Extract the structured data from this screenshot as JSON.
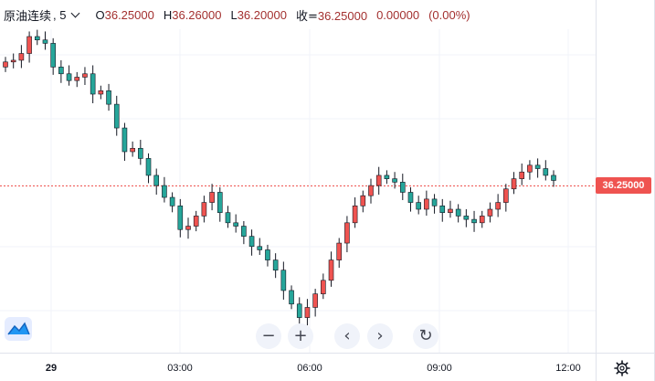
{
  "legend": {
    "symbol": "原油连续",
    "interval": ", 5",
    "open_label": "O",
    "open": "36.25000",
    "high_label": "H",
    "high": "36.26000",
    "low_label": "L",
    "low": "36.20000",
    "close_label": "收=",
    "close": "36.25000",
    "change": "0.00000",
    "change_pct": "(0.00%)"
  },
  "price_axis": {
    "last_price": "36.25000",
    "last_price_color": "#ef5350"
  },
  "time_axis": {
    "labels": [
      "29",
      "03:00",
      "06:00",
      "09:00",
      "12:00"
    ]
  },
  "controls": {
    "zoom_out": "−",
    "zoom_in": "+",
    "scroll_left": "‹",
    "scroll_right": "›",
    "reset": "↻"
  },
  "colors": {
    "up": "#ef5350",
    "down": "#26a69a",
    "text": "#131722",
    "grid": "#f0f3fa"
  },
  "icons": {
    "logo": "tradingview-logo-icon",
    "settings": "gear-icon"
  },
  "chart_data": {
    "type": "candlestick",
    "last_price": 36.25,
    "x_ticks": [
      "29",
      "03:00",
      "06:00",
      "09:00",
      "12:00"
    ],
    "close_path": [
      36.95,
      36.96,
      37.0,
      37.1,
      37.08,
      37.06,
      36.92,
      36.88,
      36.84,
      36.86,
      36.88,
      36.76,
      36.78,
      36.7,
      36.56,
      36.42,
      36.44,
      36.38,
      36.28,
      36.22,
      36.15,
      36.1,
      35.96,
      35.98,
      36.04,
      36.12,
      36.18,
      36.06,
      36.0,
      35.98,
      35.92,
      35.86,
      35.84,
      35.78,
      35.72,
      35.6,
      35.52,
      35.44,
      35.5,
      35.58,
      35.66,
      35.78,
      35.88,
      36.0,
      36.1,
      36.16,
      36.22,
      36.28,
      36.26,
      36.24,
      36.18,
      36.12,
      36.08,
      36.14,
      36.1,
      36.06,
      36.08,
      36.04,
      36.02,
      36.0,
      36.04,
      36.08,
      36.12,
      36.2,
      36.26,
      36.3,
      36.34,
      36.32,
      36.28,
      36.25
    ]
  }
}
